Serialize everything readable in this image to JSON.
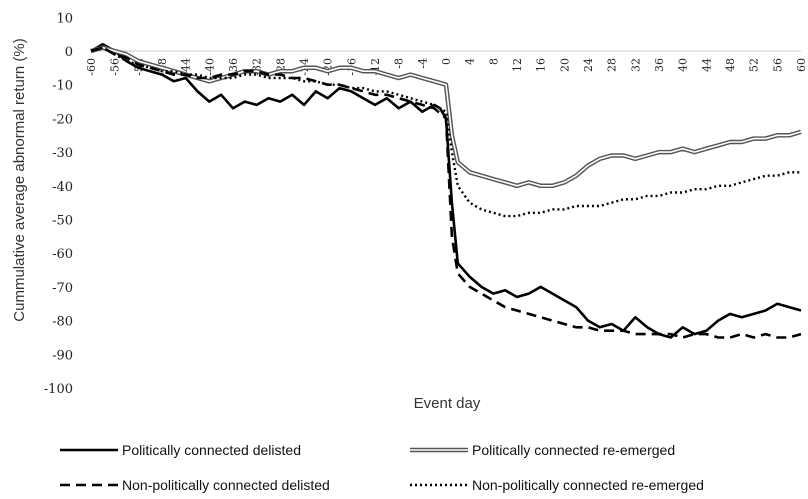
{
  "chart_data": {
    "type": "line",
    "title": "",
    "xlabel": "Event day",
    "ylabel": "Cummulative average abnormal return (%)",
    "xlim": [
      -60,
      60
    ],
    "ylim": [
      -100,
      10
    ],
    "y_ticks": [
      "10",
      "0",
      "-10",
      "-20",
      "-30",
      "-40",
      "-50",
      "-60",
      "-70",
      "-80",
      "-90",
      "-100"
    ],
    "x_ticks": [
      "-60",
      "-56",
      "-52",
      "-48",
      "-44",
      "-40",
      "-36",
      "-32",
      "-28",
      "-24",
      "-20",
      "-16",
      "-12",
      "-8",
      "-4",
      "0",
      "4",
      "8",
      "12",
      "16",
      "20",
      "24",
      "28",
      "32",
      "36",
      "40",
      "44",
      "48",
      "52",
      "56",
      "60"
    ],
    "grid": false,
    "legend_position": "bottom",
    "series": [
      {
        "name": "Politically connected delisted",
        "style": "solid-thick",
        "color": "#000000",
        "x": [
          -60,
          -58,
          -56,
          -54,
          -52,
          -50,
          -48,
          -46,
          -44,
          -42,
          -40,
          -38,
          -36,
          -34,
          -32,
          -30,
          -28,
          -26,
          -24,
          -22,
          -20,
          -18,
          -16,
          -14,
          -12,
          -10,
          -8,
          -6,
          -4,
          -2,
          -1,
          0,
          1,
          2,
          4,
          6,
          8,
          10,
          12,
          14,
          16,
          18,
          20,
          22,
          24,
          26,
          28,
          30,
          32,
          34,
          36,
          38,
          40,
          42,
          44,
          46,
          48,
          50,
          52,
          54,
          56,
          58,
          60
        ],
        "y": [
          0,
          2,
          0,
          -3,
          -5,
          -6,
          -7,
          -9,
          -8,
          -12,
          -15,
          -13,
          -17,
          -15,
          -16,
          -14,
          -15,
          -13,
          -16,
          -12,
          -14,
          -11,
          -12,
          -14,
          -16,
          -14,
          -17,
          -15,
          -18,
          -16,
          -17,
          -20,
          -45,
          -63,
          -67,
          -70,
          -72,
          -71,
          -73,
          -72,
          -70,
          -72,
          -74,
          -76,
          -80,
          -82,
          -81,
          -83,
          -79,
          -82,
          -84,
          -85,
          -82,
          -84,
          -83,
          -80,
          -78,
          -79,
          -78,
          -77,
          -75,
          -76,
          -77
        ]
      },
      {
        "name": "Politically connected re-emerged",
        "style": "double",
        "color": "#555555",
        "x": [
          -60,
          -58,
          -56,
          -54,
          -52,
          -50,
          -48,
          -46,
          -44,
          -42,
          -40,
          -38,
          -36,
          -34,
          -32,
          -30,
          -28,
          -26,
          -24,
          -22,
          -20,
          -18,
          -16,
          -14,
          -12,
          -10,
          -8,
          -6,
          -4,
          -2,
          0,
          1,
          2,
          4,
          6,
          8,
          10,
          12,
          14,
          16,
          18,
          20,
          22,
          24,
          26,
          28,
          30,
          32,
          34,
          36,
          38,
          40,
          42,
          44,
          46,
          48,
          50,
          52,
          54,
          56,
          58,
          60
        ],
        "y": [
          0,
          1,
          0,
          -1,
          -3,
          -4,
          -5,
          -6,
          -7,
          -8,
          -9,
          -8,
          -7,
          -6,
          -6,
          -7,
          -6,
          -6,
          -5,
          -5,
          -6,
          -5,
          -5,
          -6,
          -6,
          -7,
          -8,
          -7,
          -8,
          -9,
          -10,
          -25,
          -33,
          -36,
          -37,
          -38,
          -39,
          -40,
          -39,
          -40,
          -40,
          -39,
          -37,
          -34,
          -32,
          -31,
          -31,
          -32,
          -31,
          -30,
          -30,
          -29,
          -30,
          -29,
          -28,
          -27,
          -27,
          -26,
          -26,
          -25,
          -25,
          -24
        ]
      },
      {
        "name": "Non-politically connected delisted",
        "style": "dashed",
        "color": "#000000",
        "x": [
          -60,
          -58,
          -56,
          -54,
          -52,
          -50,
          -48,
          -46,
          -44,
          -42,
          -40,
          -38,
          -36,
          -34,
          -32,
          -30,
          -28,
          -26,
          -24,
          -22,
          -20,
          -18,
          -16,
          -14,
          -12,
          -10,
          -8,
          -6,
          -4,
          -2,
          0,
          1,
          2,
          4,
          6,
          8,
          10,
          12,
          14,
          16,
          18,
          20,
          22,
          24,
          26,
          28,
          30,
          32,
          34,
          36,
          38,
          40,
          42,
          44,
          46,
          48,
          50,
          52,
          54,
          56,
          58,
          60
        ],
        "y": [
          0,
          1,
          -1,
          -2,
          -4,
          -5,
          -6,
          -7,
          -7,
          -8,
          -8,
          -7,
          -7,
          -6,
          -6,
          -7,
          -7,
          -8,
          -8,
          -9,
          -10,
          -10,
          -11,
          -12,
          -13,
          -13,
          -14,
          -15,
          -16,
          -17,
          -20,
          -55,
          -66,
          -70,
          -72,
          -74,
          -76,
          -77,
          -78,
          -79,
          -80,
          -81,
          -82,
          -82,
          -83,
          -83,
          -83,
          -84,
          -84,
          -84,
          -84,
          -85,
          -84,
          -84,
          -85,
          -85,
          -84,
          -85,
          -84,
          -85,
          -85,
          -84
        ]
      },
      {
        "name": "Non-politically connected re-emerged",
        "style": "dotted",
        "color": "#000000",
        "x": [
          -60,
          -58,
          -56,
          -54,
          -52,
          -50,
          -48,
          -46,
          -44,
          -42,
          -40,
          -38,
          -36,
          -34,
          -32,
          -30,
          -28,
          -26,
          -24,
          -22,
          -20,
          -18,
          -16,
          -14,
          -12,
          -10,
          -8,
          -6,
          -4,
          -2,
          0,
          1,
          2,
          4,
          6,
          8,
          10,
          12,
          14,
          16,
          18,
          20,
          22,
          24,
          26,
          28,
          30,
          32,
          34,
          36,
          38,
          40,
          42,
          44,
          46,
          48,
          50,
          52,
          54,
          56,
          58,
          60
        ],
        "y": [
          0,
          1,
          -1,
          -3,
          -4,
          -5,
          -6,
          -6,
          -7,
          -7,
          -8,
          -8,
          -8,
          -7,
          -7,
          -8,
          -8,
          -8,
          -9,
          -9,
          -10,
          -10,
          -11,
          -11,
          -12,
          -12,
          -13,
          -14,
          -15,
          -16,
          -18,
          -30,
          -40,
          -45,
          -47,
          -48,
          -49,
          -49,
          -48,
          -48,
          -47,
          -47,
          -46,
          -46,
          -46,
          -45,
          -44,
          -44,
          -43,
          -43,
          -42,
          -42,
          -41,
          -41,
          -40,
          -40,
          -39,
          -38,
          -37,
          -37,
          -36,
          -36
        ]
      }
    ]
  }
}
